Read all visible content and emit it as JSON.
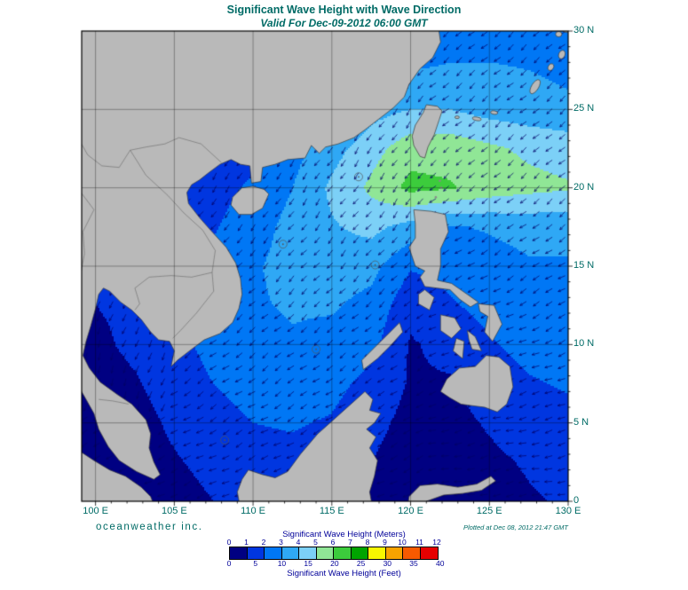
{
  "header": {
    "title": "Significant Wave Height with Wave Direction",
    "subtitle": "Valid For Dec-09-2012 06:00 GMT"
  },
  "branding": {
    "name": "oceanweather inc.",
    "plotted_at": "Plotted at Dec 08, 2012 21:47 GMT"
  },
  "axes": {
    "x_ticks": [
      {
        "lon": 100,
        "label": "100 E"
      },
      {
        "lon": 105,
        "label": "105 E"
      },
      {
        "lon": 110,
        "label": "110 E"
      },
      {
        "lon": 115,
        "label": "115 E"
      },
      {
        "lon": 120,
        "label": "120 E"
      },
      {
        "lon": 125,
        "label": "125 E"
      },
      {
        "lon": 130,
        "label": "130 E"
      }
    ],
    "y_ticks": [
      {
        "lat": 30,
        "label": "30 N"
      },
      {
        "lat": 25,
        "label": "25 N"
      },
      {
        "lat": 20,
        "label": "20 N"
      },
      {
        "lat": 15,
        "label": "15 N"
      },
      {
        "lat": 10,
        "label": "10 N"
      },
      {
        "lat": 5,
        "label": "5 N"
      },
      {
        "lat": 0,
        "label": "0"
      }
    ]
  },
  "legend": {
    "meters_label": "Significant Wave Height (Meters)",
    "feet_label": "Significant Wave Height (Feet)",
    "meter_ticks": [
      0,
      1,
      2,
      3,
      4,
      5,
      6,
      7,
      8,
      9,
      10,
      11,
      12
    ],
    "feet_ticks": [
      0,
      5,
      10,
      15,
      20,
      25,
      30,
      35,
      40
    ],
    "colors": [
      "#000082",
      "#0036e0",
      "#0077f5",
      "#2fa8f5",
      "#7cd0f7",
      "#90e696",
      "#3ccc3c",
      "#00a400",
      "#f7f700",
      "#f7a300",
      "#f75a00",
      "#e60000"
    ]
  },
  "colors": {
    "title_text": "#006b66",
    "legend_text": "#000099",
    "land": "#b9b9b9",
    "coast": "#3a3a3a",
    "arrow": "#000066",
    "grid": "#000000"
  },
  "chart_data": {
    "type": "heatmap",
    "title": "Significant Wave Height with Wave Direction",
    "valid_time": "Dec-09-2012 06:00 GMT",
    "plotted_time": "Dec 08, 2012 21:47 GMT",
    "region": "South China Sea / Philippine Sea (Oceanweather Inc. wave analysis)",
    "units": {
      "primary": "meters",
      "secondary": "feet"
    },
    "lon_range_deg_e": [
      99.1,
      130
    ],
    "lat_range_deg_n": [
      0,
      30
    ],
    "grid_spacing_deg": 5,
    "color_levels_m": [
      0,
      1,
      2,
      3,
      4,
      5,
      6,
      7,
      8,
      9,
      10,
      11,
      12
    ],
    "palette": [
      "#000082",
      "#0036e0",
      "#0077f5",
      "#2fa8f5",
      "#7cd0f7",
      "#90e696",
      "#3ccc3c",
      "#00a400",
      "#f7f700",
      "#f7a300",
      "#f75a00",
      "#e60000"
    ],
    "wave_direction": "Arrows point from northeast toward southwest across the basin (northeast monsoon); more westward east of the Philippines, southward in the Gulf of Thailand",
    "max_height_note": "Peak band ~5-6.5 m (green) through the Luzon Strait and east of Taiwan extending eastward near 20-21 N; most of the South China Sea 2-4 m; sheltered seas (Gulf of Thailand, Sulu Sea, Malacca area) under 1-2 m",
    "grid": {
      "lons": [
        100,
        102.5,
        105,
        107.5,
        110,
        112.5,
        115,
        117.5,
        120,
        122.5,
        125,
        127.5,
        130
      ],
      "lats": [
        30,
        27.5,
        25,
        22.5,
        20,
        17.5,
        15,
        12.5,
        10,
        7.5,
        5,
        2.5,
        0
      ],
      "values_m": [
        [
          1.0,
          1.0,
          1.0,
          1.0,
          1.0,
          1.0,
          1.2,
          1.8,
          2.2,
          2.6,
          2.6,
          2.6,
          2.5
        ],
        [
          1.0,
          1.0,
          1.0,
          1.0,
          1.0,
          1.2,
          1.6,
          2.6,
          3.0,
          3.1,
          3.1,
          3.0,
          2.8
        ],
        [
          1.0,
          1.0,
          1.0,
          1.0,
          1.2,
          1.6,
          2.6,
          3.6,
          4.0,
          4.0,
          3.6,
          3.4,
          3.2
        ],
        [
          1.0,
          1.0,
          1.0,
          1.2,
          1.6,
          2.6,
          3.6,
          4.6,
          5.6,
          5.6,
          5.2,
          4.8,
          4.6
        ],
        [
          1.4,
          1.0,
          1.1,
          1.6,
          2.2,
          3.0,
          4.2,
          5.2,
          6.3,
          6.1,
          5.6,
          5.3,
          5.1
        ],
        [
          1.2,
          1.0,
          1.2,
          1.9,
          2.6,
          3.3,
          3.9,
          4.3,
          3.6,
          2.9,
          3.1,
          3.3,
          3.3
        ],
        [
          1.2,
          1.2,
          1.6,
          2.3,
          2.9,
          3.3,
          3.5,
          3.3,
          2.1,
          2.3,
          2.6,
          2.9,
          2.9
        ],
        [
          1.0,
          1.2,
          1.9,
          2.5,
          2.9,
          3.1,
          3.1,
          2.7,
          1.3,
          1.9,
          2.3,
          2.6,
          2.6
        ],
        [
          0.8,
          1.2,
          1.7,
          2.3,
          2.7,
          2.9,
          2.7,
          2.3,
          0.9,
          1.3,
          1.9,
          2.3,
          2.5
        ],
        [
          0.6,
          0.9,
          1.5,
          2.0,
          2.3,
          2.5,
          2.3,
          1.7,
          0.9,
          0.9,
          1.5,
          1.9,
          2.1
        ],
        [
          0.4,
          0.6,
          1.2,
          1.7,
          2.0,
          2.1,
          1.9,
          1.3,
          0.7,
          0.7,
          1.1,
          1.5,
          1.7
        ],
        [
          0.3,
          0.4,
          0.9,
          1.3,
          1.6,
          1.7,
          1.4,
          1.0,
          0.5,
          0.5,
          0.8,
          1.1,
          1.3
        ],
        [
          0.2,
          0.3,
          0.6,
          1.0,
          1.2,
          1.2,
          1.0,
          0.7,
          0.4,
          0.4,
          0.6,
          0.9,
          1.1
        ]
      ]
    }
  }
}
